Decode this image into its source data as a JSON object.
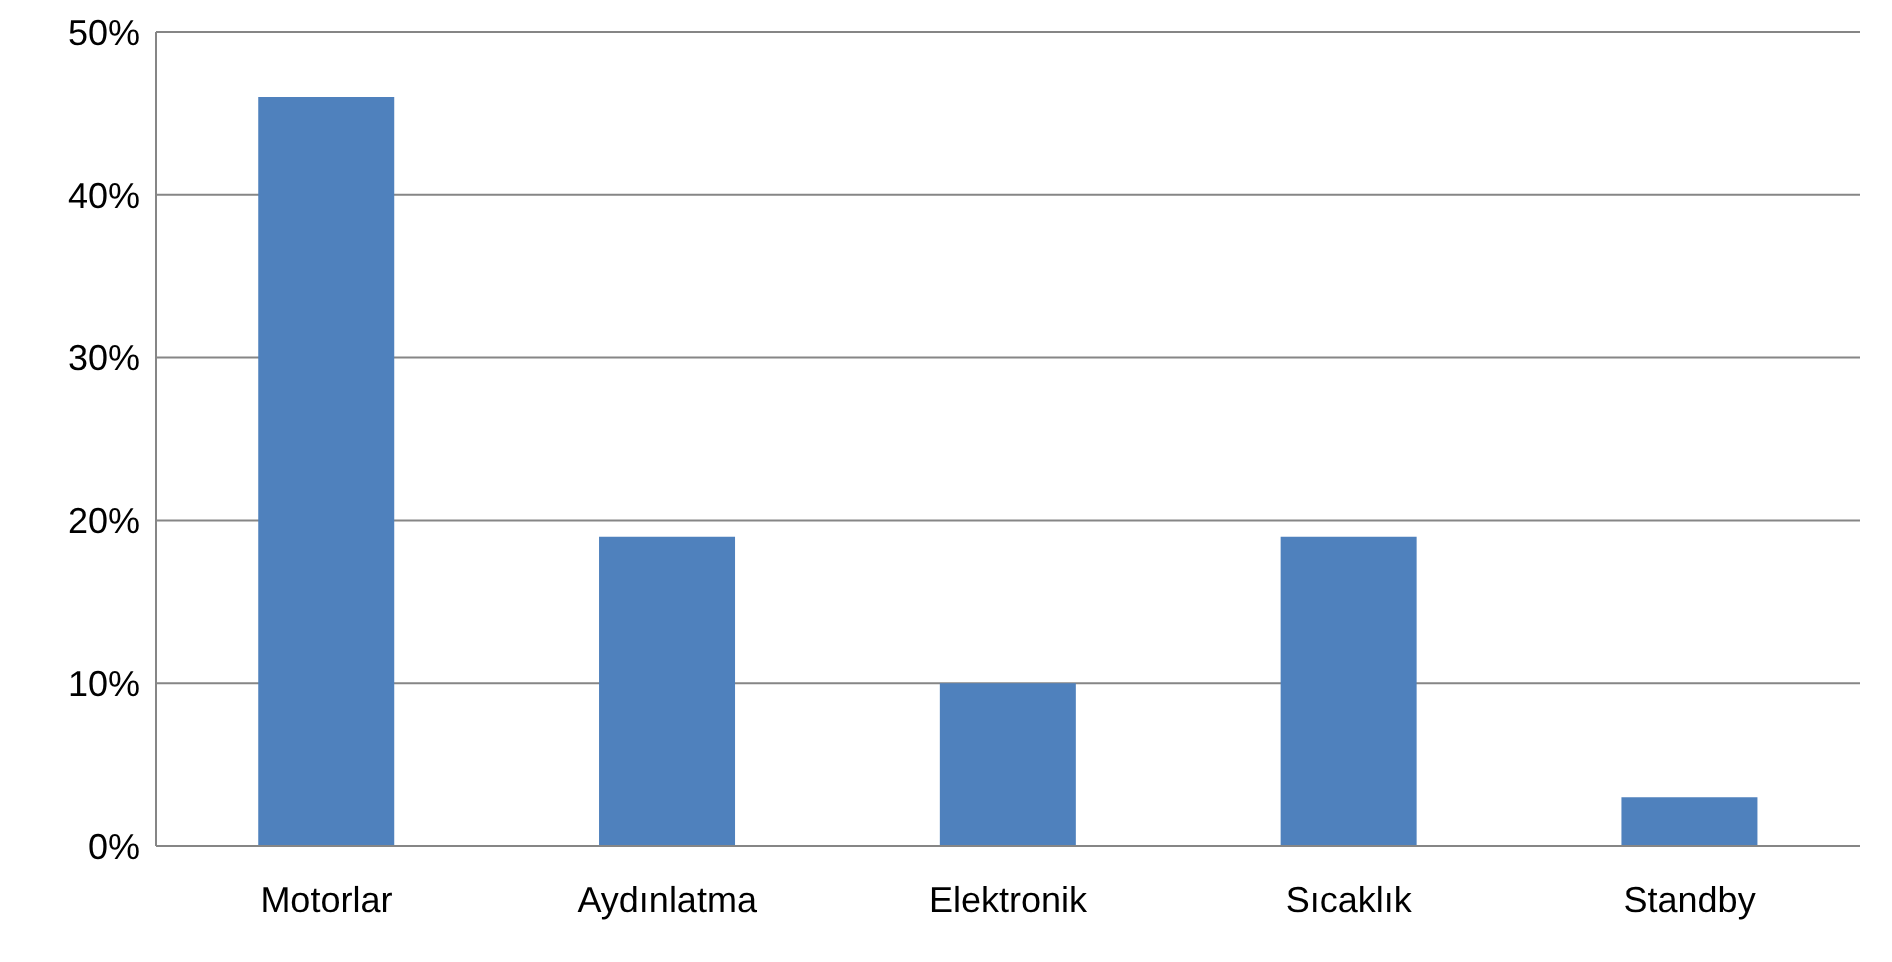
{
  "chart_data": {
    "type": "bar",
    "categories": [
      "Motorlar",
      "Aydınlatma",
      "Elektronik",
      "Sıcaklık",
      "Standby"
    ],
    "values": [
      46,
      19,
      10,
      19,
      3
    ],
    "color": "#4f81bd",
    "ylim": [
      0,
      50
    ],
    "yticks": [
      {
        "value": 0,
        "label": "0%"
      },
      {
        "value": 10,
        "label": "10%"
      },
      {
        "value": 20,
        "label": "20%"
      },
      {
        "value": 30,
        "label": "30%"
      },
      {
        "value": 40,
        "label": "40%"
      },
      {
        "value": 50,
        "label": "50%"
      }
    ],
    "grid": "y"
  }
}
